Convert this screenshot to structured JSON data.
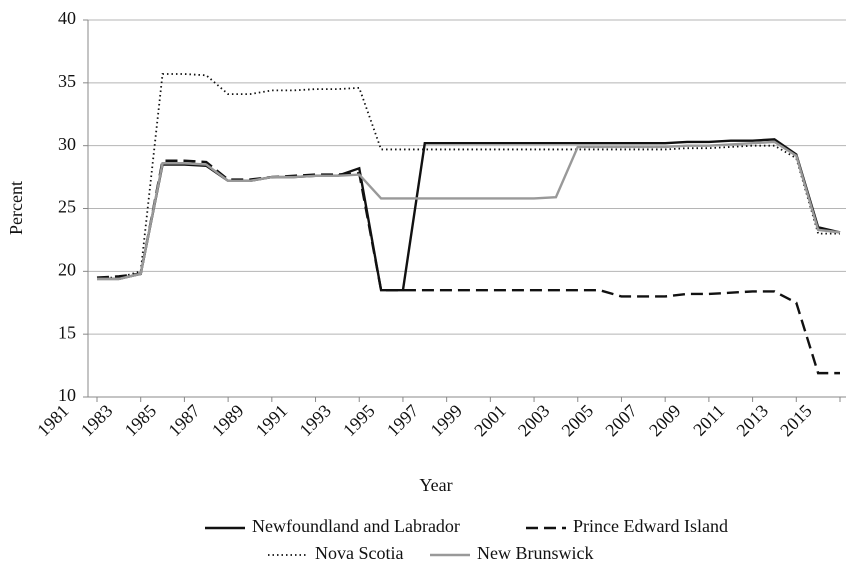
{
  "chart_data": {
    "type": "line",
    "y_label": "Percent",
    "x_label": "Year",
    "x": [
      1981,
      1982,
      1983,
      1984,
      1985,
      1986,
      1987,
      1988,
      1989,
      1990,
      1991,
      1992,
      1993,
      1994,
      1995,
      1996,
      1997,
      1998,
      1999,
      2000,
      2001,
      2002,
      2003,
      2004,
      2005,
      2006,
      2007,
      2008,
      2009,
      2010,
      2011,
      2012,
      2013,
      2014,
      2015
    ],
    "xlim": [
      1981,
      2015
    ],
    "xticks": [
      1981,
      1983,
      1985,
      1987,
      1989,
      1991,
      1993,
      1995,
      1997,
      1999,
      2001,
      2003,
      2005,
      2007,
      2009,
      2011,
      2013,
      2015
    ],
    "ylim": [
      10,
      40
    ],
    "yticks": [
      10,
      15,
      20,
      25,
      30,
      35,
      40
    ],
    "grid": true,
    "series": [
      {
        "name": "Newfoundland and Labrador",
        "color": "#111111",
        "dash": "solid",
        "values": [
          19.4,
          19.4,
          19.8,
          28.5,
          28.5,
          28.4,
          27.2,
          27.2,
          27.5,
          27.5,
          27.6,
          27.6,
          28.2,
          18.5,
          18.5,
          30.2,
          30.2,
          30.2,
          30.2,
          30.2,
          30.2,
          30.2,
          30.2,
          30.2,
          30.2,
          30.2,
          30.2,
          30.3,
          30.3,
          30.4,
          30.4,
          30.5,
          29.3,
          23.5,
          23.1
        ]
      },
      {
        "name": "Prince Edward Island",
        "color": "#111111",
        "dash": "dashed",
        "values": [
          19.5,
          19.6,
          19.8,
          28.8,
          28.8,
          28.7,
          27.3,
          27.3,
          27.5,
          27.6,
          27.7,
          27.7,
          27.8,
          18.5,
          18.5,
          18.5,
          18.5,
          18.5,
          18.5,
          18.5,
          18.5,
          18.5,
          18.5,
          18.5,
          18.0,
          18.0,
          18.0,
          18.2,
          18.2,
          18.3,
          18.4,
          18.4,
          17.5,
          11.9,
          11.9
        ]
      },
      {
        "name": "Nova Scotia",
        "color": "#111111",
        "dash": "dotted",
        "values": [
          19.5,
          19.5,
          20.0,
          35.7,
          35.7,
          35.6,
          34.1,
          34.1,
          34.4,
          34.4,
          34.5,
          34.5,
          34.6,
          29.7,
          29.7,
          29.7,
          29.7,
          29.7,
          29.7,
          29.7,
          29.7,
          29.7,
          29.7,
          29.7,
          29.7,
          29.7,
          29.7,
          29.8,
          29.8,
          29.9,
          30.0,
          30.0,
          29.0,
          23.0,
          23.0
        ]
      },
      {
        "name": "New Brunswick",
        "color": "#999999",
        "dash": "solid",
        "values": [
          19.4,
          19.4,
          19.8,
          28.6,
          28.6,
          28.5,
          27.2,
          27.2,
          27.5,
          27.5,
          27.6,
          27.6,
          27.7,
          25.8,
          25.8,
          25.8,
          25.8,
          25.8,
          25.8,
          25.8,
          25.8,
          25.9,
          29.9,
          29.9,
          29.9,
          29.9,
          29.9,
          30.0,
          30.0,
          30.1,
          30.2,
          30.3,
          29.2,
          23.3,
          23.1
        ]
      }
    ]
  }
}
